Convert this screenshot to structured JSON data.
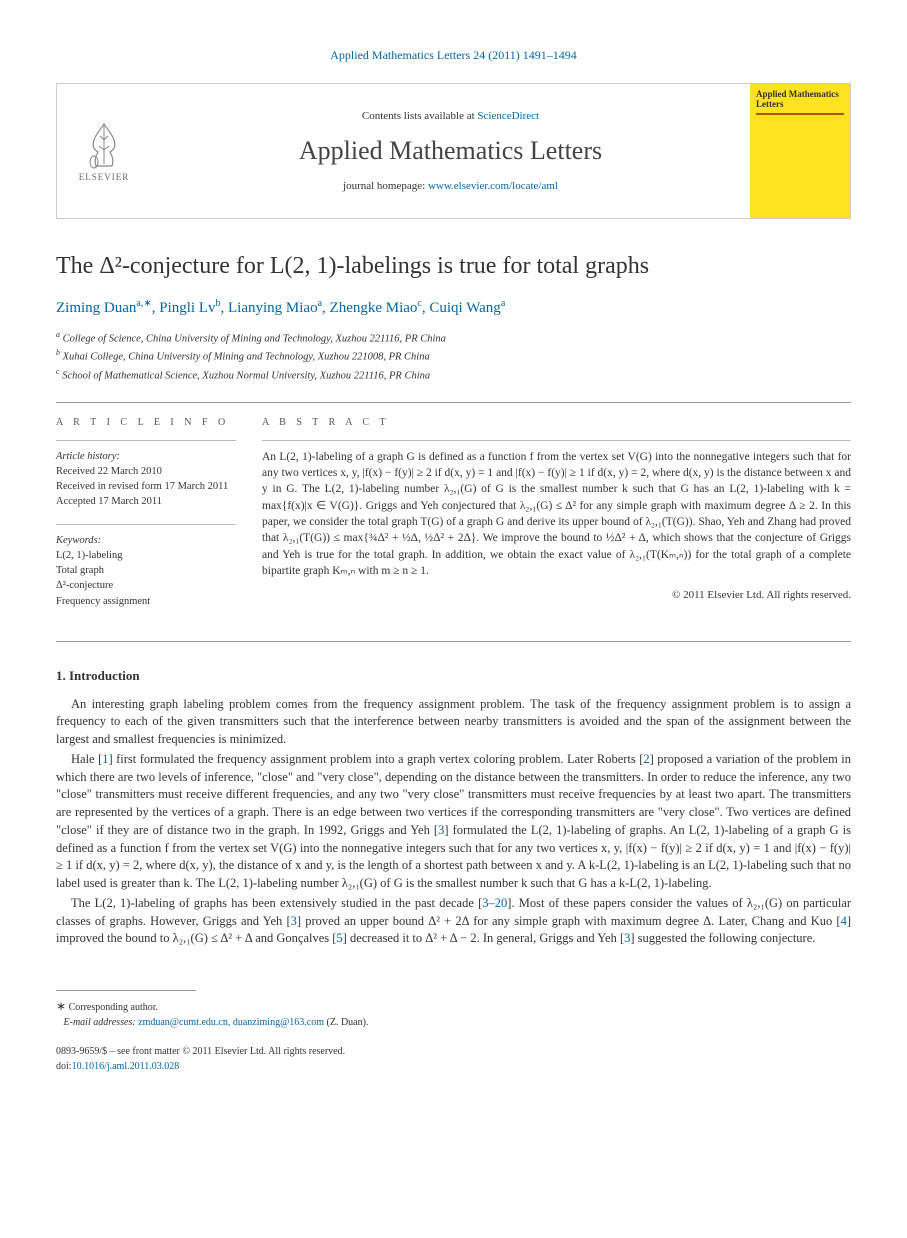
{
  "header": {
    "citation": "Applied Mathematics Letters 24 (2011) 1491–1494",
    "contents_prefix": "Contents lists available at ",
    "contents_link": "ScienceDirect",
    "journal": "Applied Mathematics Letters",
    "homepage_prefix": "journal homepage: ",
    "homepage_link": "www.elsevier.com/locate/aml",
    "elsevier": "ELSEVIER",
    "cover_title": "Applied Mathematics Letters",
    "colors": {
      "link": "#0066aa",
      "cover_bg": "#ffe220",
      "cover_stripe": "#aa5500",
      "border": "#cccccc",
      "text": "#333333"
    }
  },
  "title": "The Δ²-conjecture for L(2, 1)-labelings is true for total graphs",
  "authors_html": "Ziming Duan<sup>a,∗</sup>, Pingli Lv<sup>b</sup>, Lianying Miao<sup>a</sup>, Zhengke Miao<sup>c</sup>, Cuiqi Wang<sup>a</sup>",
  "affiliations": [
    {
      "sup": "a",
      "text": "College of Science, China University of Mining and Technology, Xuzhou 221116, PR China"
    },
    {
      "sup": "b",
      "text": "Xuhai College, China University of Mining and Technology, Xuzhou 221008, PR China"
    },
    {
      "sup": "c",
      "text": "School of Mathematical Science, Xuzhou Normal University, Xuzhou 221116, PR China"
    }
  ],
  "article_info": {
    "head": "A R T I C L E   I N F O",
    "history_label": "Article history:",
    "history": [
      "Received 22 March 2010",
      "Received in revised form 17 March 2011",
      "Accepted 17 March 2011"
    ],
    "keywords_label": "Keywords:",
    "keywords": [
      "L(2, 1)-labeling",
      "Total graph",
      "Δ²-conjecture",
      "Frequency assignment"
    ]
  },
  "abstract": {
    "head": "A B S T R A C T",
    "text": "An L(2, 1)-labeling of a graph G is defined as a function f from the vertex set V(G) into the nonnegative integers such that for any two vertices x, y, |f(x) − f(y)| ≥ 2 if d(x, y) = 1 and |f(x) − f(y)| ≥ 1 if d(x, y) = 2, where d(x, y) is the distance between x and y in G. The L(2, 1)-labeling number λ₂,₁(G) of G is the smallest number k such that G has an L(2, 1)-labeling with k = max{f(x)|x ∈ V(G)}. Griggs and Yeh conjectured that λ₂,₁(G) ≤ Δ² for any simple graph with maximum degree Δ ≥ 2. In this paper, we consider the total graph T(G) of a graph G and derive its upper bound of λ₂,₁(T(G)). Shao, Yeh and Zhang had proved that λ₂,₁(T(G)) ≤ max{¾Δ² + ½Δ, ½Δ² + 2Δ}. We improve the bound to ½Δ² + Δ, which shows that the conjecture of Griggs and Yeh is true for the total graph. In addition, we obtain the exact value of λ₂,₁(T(Kₘ,ₙ)) for the total graph of a complete bipartite graph Kₘ,ₙ with m ≥ n ≥ 1.",
    "copyright": "© 2011 Elsevier Ltd. All rights reserved."
  },
  "sections": {
    "intro_head": "1. Introduction",
    "paras": [
      "An interesting graph labeling problem comes from the frequency assignment problem. The task of the frequency assignment problem is to assign a frequency to each of the given transmitters such that the interference between nearby transmitters is avoided and the span of the assignment between the largest and smallest frequencies is minimized.",
      "Hale [1] first formulated the frequency assignment problem into a graph vertex coloring problem. Later Roberts [2] proposed a variation of the problem in which there are two levels of inference, \"close\" and \"very close\", depending on the distance between the transmitters. In order to reduce the inference, any two \"close\" transmitters must receive different frequencies, and any two \"very close\" transmitters must receive frequencies by at least two apart. The transmitters are represented by the vertices of a graph. There is an edge between two vertices if the corresponding transmitters are \"very close\". Two vertices are defined \"close\" if they are of distance two in the graph. In 1992, Griggs and Yeh [3] formulated the L(2, 1)-labeling of graphs. An L(2, 1)-labeling of a graph G is defined as a function f from the vertex set V(G) into the nonnegative integers such that for any two vertices x, y, |f(x) − f(y)| ≥ 2 if d(x, y) = 1 and |f(x) − f(y)| ≥ 1 if d(x, y) = 2, where d(x, y), the distance of x and y, is the length of a shortest path between x and y. A k-L(2, 1)-labeling is an L(2, 1)-labeling such that no label used is greater than k. The L(2, 1)-labeling number λ₂,₁(G) of G is the smallest number k such that G has a k-L(2, 1)-labeling.",
      "The L(2, 1)-labeling of graphs has been extensively studied in the past decade [3–20]. Most of these papers consider the values of λ₂,₁(G) on particular classes of graphs. However, Griggs and Yeh [3] proved an upper bound Δ² + 2Δ for any simple graph with maximum degree Δ. Later, Chang and Kuo [4] improved the bound to λ₂,₁(G) ≤ Δ² + Δ and Gonçalves [5] decreased it to Δ² + Δ − 2. In general, Griggs and Yeh [3] suggested the following conjecture."
    ]
  },
  "footnote": {
    "corr": "Corresponding author.",
    "email_label": "E-mail addresses:",
    "emails": "zmduan@cumt.edu.cn, duanziming@163.com",
    "email_suffix": "(Z. Duan)."
  },
  "footer": {
    "issn": "0893-9659/$ – see front matter © 2011 Elsevier Ltd. All rights reserved.",
    "doi_label": "doi:",
    "doi": "10.1016/j.aml.2011.03.028"
  }
}
